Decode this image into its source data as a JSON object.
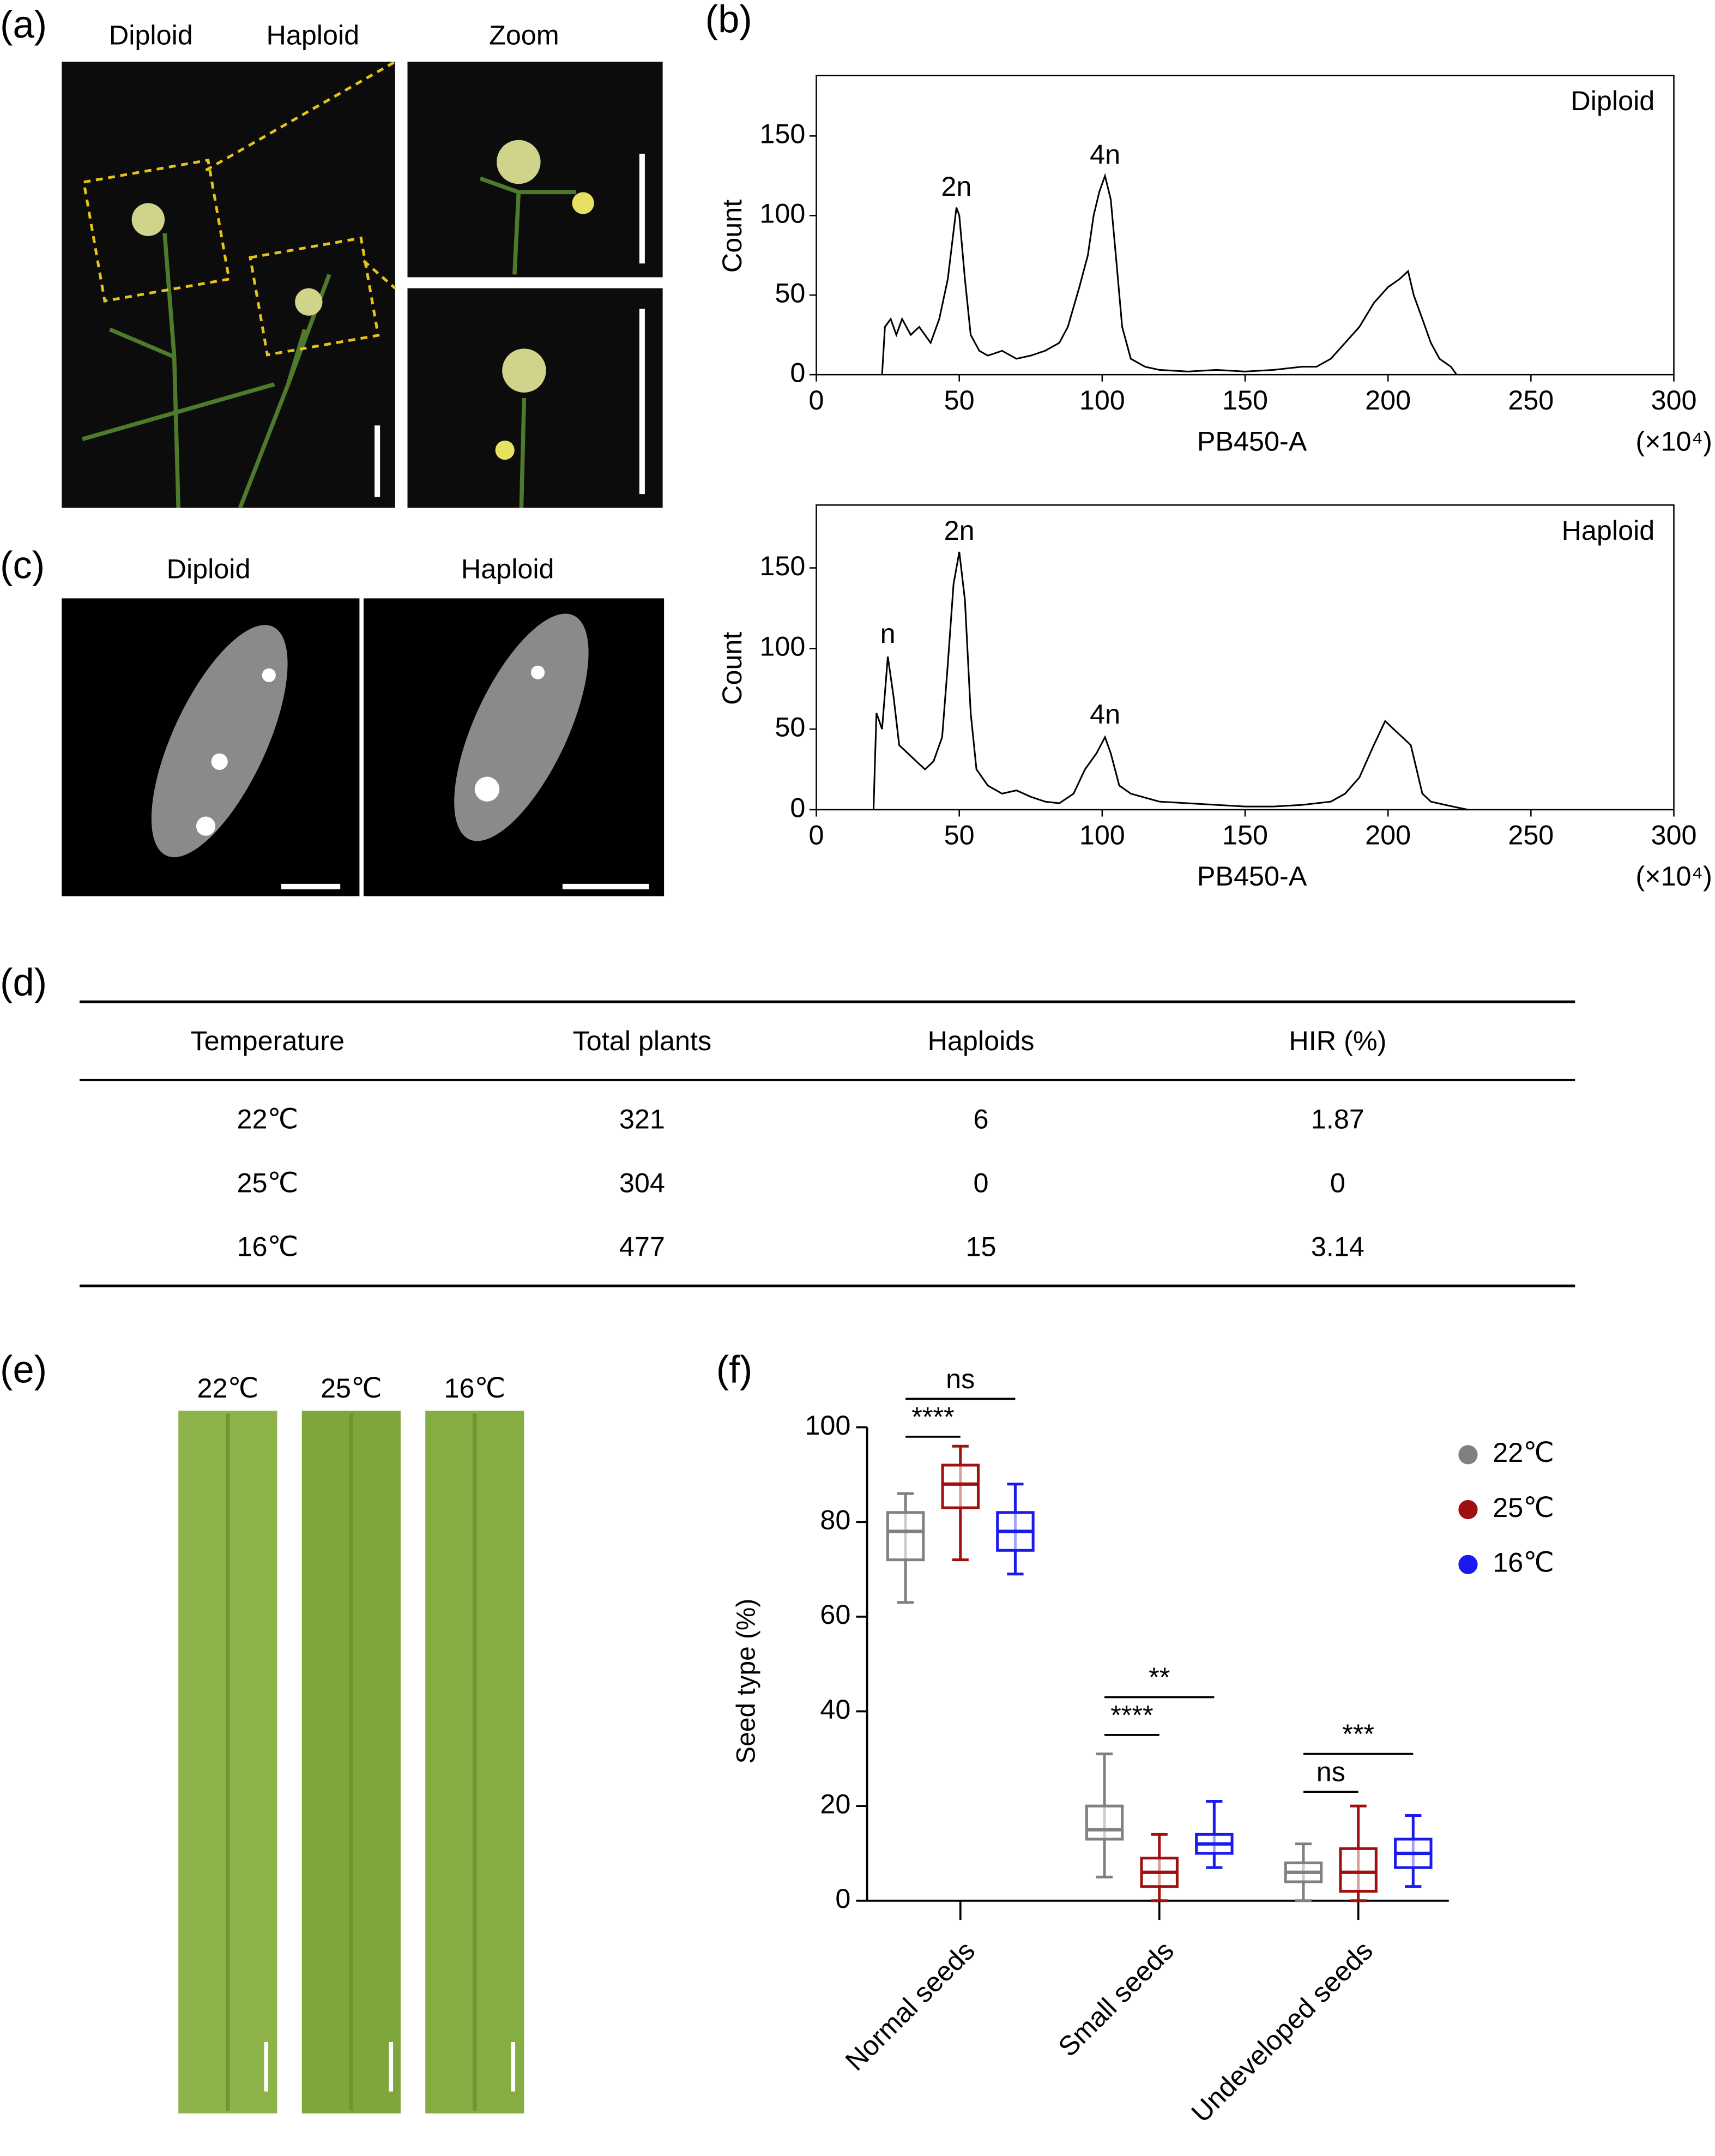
{
  "panel_labels": [
    "(a)",
    "(b)",
    "(c)",
    "(d)",
    "(e)",
    "(f)"
  ],
  "panel_a": {
    "labels": [
      "Diploid",
      "Haploid",
      "Zoom"
    ]
  },
  "panel_c": {
    "labels": [
      "Diploid",
      "Haploid"
    ]
  },
  "panel_e": {
    "labels": [
      "22℃",
      "25℃",
      "16℃"
    ]
  },
  "table": {
    "header": [
      "Temperature",
      "Total plants",
      "Haploids",
      "HIR (%)"
    ],
    "rows": [
      [
        "22℃",
        321,
        6,
        1.87
      ],
      [
        "25℃",
        304,
        0,
        0
      ],
      [
        "16℃",
        477,
        15,
        3.14
      ]
    ]
  },
  "chart_data": [
    {
      "type": "line",
      "title": "Diploid",
      "x_label": "PB450-A",
      "x_unit": "(×10⁴)",
      "y_label": "Count",
      "color": "#000000",
      "xlim": [
        0,
        300
      ],
      "xticks": [
        0,
        50,
        100,
        150,
        200,
        250,
        300
      ],
      "ylim": [
        0,
        188
      ],
      "yticks": [
        0,
        50,
        100,
        150
      ],
      "x": [
        23,
        24,
        26,
        28,
        30,
        33,
        36,
        40,
        43,
        46,
        48,
        49,
        50,
        52,
        54,
        57,
        60,
        65,
        70,
        75,
        80,
        85,
        88,
        92,
        95,
        97,
        99,
        101,
        103,
        105,
        107,
        110,
        115,
        120,
        130,
        140,
        150,
        160,
        170,
        175,
        180,
        185,
        190,
        195,
        200,
        204,
        207,
        209,
        212,
        215,
        218,
        222,
        224
      ],
      "values": [
        0,
        30,
        35,
        25,
        35,
        25,
        30,
        20,
        35,
        60,
        90,
        105,
        100,
        60,
        25,
        15,
        12,
        15,
        10,
        12,
        15,
        20,
        30,
        55,
        75,
        100,
        115,
        125,
        110,
        70,
        30,
        10,
        5,
        3,
        2,
        3,
        2,
        3,
        5,
        5,
        10,
        20,
        30,
        45,
        55,
        60,
        65,
        50,
        35,
        20,
        10,
        5,
        0
      ],
      "annotations": [
        {
          "text": "2n",
          "x": 49,
          "y": 117
        },
        {
          "text": "4n",
          "x": 101,
          "y": 137
        }
      ]
    },
    {
      "type": "line",
      "title": "Haploid",
      "x_label": "PB450-A",
      "x_unit": "(×10⁴)",
      "y_label": "Count",
      "color": "#000000",
      "xlim": [
        0,
        300
      ],
      "xticks": [
        0,
        50,
        100,
        150,
        200,
        250,
        300
      ],
      "ylim": [
        0,
        189
      ],
      "yticks": [
        0,
        50,
        100,
        150
      ],
      "x": [
        20,
        21,
        23,
        25,
        27,
        29,
        32,
        35,
        38,
        41,
        44,
        46,
        48,
        50,
        52,
        54,
        56,
        60,
        65,
        70,
        75,
        80,
        85,
        90,
        94,
        98,
        101,
        103,
        106,
        110,
        120,
        130,
        140,
        150,
        160,
        170,
        180,
        185,
        190,
        195,
        199,
        202,
        205,
        208,
        210,
        212,
        215,
        220,
        228
      ],
      "values": [
        0,
        60,
        50,
        95,
        70,
        40,
        35,
        30,
        25,
        30,
        45,
        90,
        140,
        160,
        130,
        60,
        25,
        15,
        10,
        12,
        8,
        5,
        4,
        10,
        25,
        35,
        45,
        35,
        15,
        10,
        5,
        4,
        3,
        2,
        2,
        3,
        5,
        10,
        20,
        40,
        55,
        50,
        45,
        40,
        25,
        10,
        5,
        3,
        0
      ],
      "annotations": [
        {
          "text": "n",
          "x": 25,
          "y": 108
        },
        {
          "text": "2n",
          "x": 50,
          "y": 172
        },
        {
          "text": "4n",
          "x": 101,
          "y": 58
        }
      ]
    },
    {
      "type": "box",
      "y_label": "Seed type  (%)",
      "ylim": [
        0,
        100
      ],
      "yticks": [
        0,
        20,
        40,
        60,
        80,
        100
      ],
      "categories": [
        "Normal seeds",
        "Small seeds",
        "Undeveloped seeds"
      ],
      "series": [
        {
          "name": "22℃",
          "color": "#808080",
          "min": [
            63,
            5,
            0
          ],
          "q1": [
            72,
            13,
            4
          ],
          "median": [
            78,
            15,
            6
          ],
          "q3": [
            82,
            20,
            8
          ],
          "max": [
            86,
            31,
            12
          ]
        },
        {
          "name": "25℃",
          "color": "#a01010",
          "min": [
            72,
            0,
            0
          ],
          "q1": [
            83,
            3,
            2
          ],
          "median": [
            88,
            6,
            6
          ],
          "q3": [
            92,
            9,
            11
          ],
          "max": [
            96,
            14,
            20
          ]
        },
        {
          "name": "16℃",
          "color": "#1a1aee",
          "min": [
            69,
            7,
            3
          ],
          "q1": [
            74,
            10,
            7
          ],
          "median": [
            78,
            12,
            10
          ],
          "q3": [
            82,
            14,
            13
          ],
          "max": [
            88,
            21,
            18
          ]
        }
      ],
      "significance": [
        {
          "label": "ns",
          "category": 0,
          "from": 0,
          "to": 2,
          "y": 106
        },
        {
          "label": "****",
          "category": 0,
          "from": 0,
          "to": 1,
          "y": 98
        },
        {
          "label": "**",
          "category": 1,
          "from": 0,
          "to": 2,
          "y": 43
        },
        {
          "label": "****",
          "category": 1,
          "from": 0,
          "to": 1,
          "y": 35
        },
        {
          "label": "***",
          "category": 2,
          "from": 0,
          "to": 2,
          "y": 31
        },
        {
          "label": "ns",
          "category": 2,
          "from": 0,
          "to": 1,
          "y": 23
        }
      ]
    }
  ]
}
